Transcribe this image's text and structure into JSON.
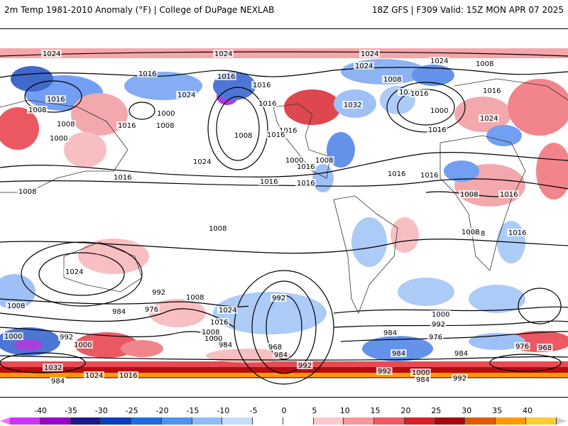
{
  "header": {
    "title_left": "2m Temp 1981-2010 Anomaly (°F) | College of DuPage NEXLAB",
    "title_right": "18Z GFS | F309 Valid: 15Z MON APR 07 2025"
  },
  "colorbar": {
    "labels": [
      "-40",
      "-35",
      "-30",
      "-25",
      "-20",
      "-15",
      "-10",
      "-5",
      "0",
      "5",
      "10",
      "15",
      "20",
      "25",
      "30",
      "35",
      "40"
    ],
    "colors": [
      "#ff66ff",
      "#cc33ff",
      "#9900cc",
      "#1a1a8c",
      "#0a3cbe",
      "#1f6be0",
      "#4f93f0",
      "#8fbcf8",
      "#c7def9",
      "#ffffff",
      "#ffffff",
      "#fcc8cc",
      "#f7969c",
      "#f05a64",
      "#d91f26",
      "#a60a0c",
      "#e05a00",
      "#ff9900",
      "#ffcc33",
      "#d0d0d0"
    ]
  },
  "isobars": {
    "labels": [
      "1024",
      "1024",
      "1024",
      "1016",
      "1016",
      "1016",
      "1024",
      "1024",
      "1008",
      "1008",
      "1016",
      "1016",
      "1000",
      "1016",
      "1008",
      "1000",
      "1008",
      "1024",
      "1016",
      "1032",
      "1008",
      "1024",
      "1016",
      "1000",
      "1008",
      "1016",
      "1016",
      "1024",
      "1016",
      "1000",
      "1008",
      "1016",
      "1016",
      "1016",
      "1016",
      "1016",
      "1008",
      "1024",
      "1016",
      "1008",
      "1008",
      "1016",
      "1008",
      "1016",
      "1008",
      "1024",
      "992",
      "976",
      "984",
      "1008",
      "992",
      "1024",
      "1016",
      "1008",
      "1000",
      "984",
      "968",
      "984",
      "992",
      "984",
      "1000",
      "992",
      "976",
      "984",
      "984",
      "976",
      "968",
      "1000",
      "1032",
      "1008",
      "1000",
      "992",
      "1024",
      "1016",
      "984",
      "992",
      "1000",
      "984",
      "992"
    ]
  }
}
